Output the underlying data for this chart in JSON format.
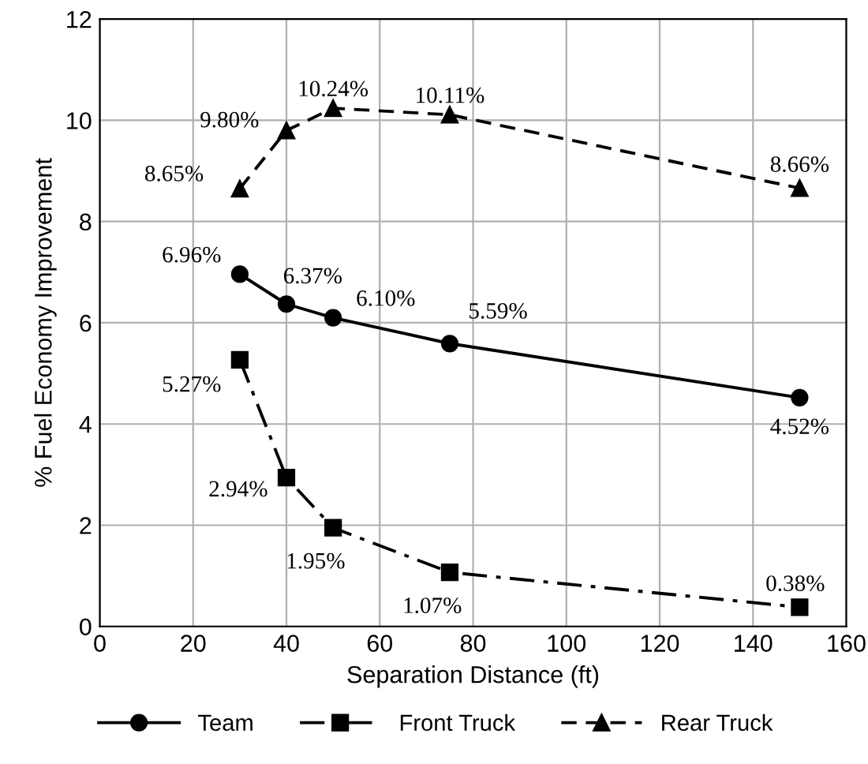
{
  "chart_data": {
    "type": "line",
    "xlabel": "Separation Distance (ft)",
    "ylabel": "% Fuel Economy Improvement",
    "xlim": [
      0,
      160
    ],
    "xticks": [
      0,
      20,
      40,
      60,
      80,
      100,
      120,
      140,
      160
    ],
    "ylim": [
      0,
      12
    ],
    "yticks": [
      0,
      2,
      4,
      6,
      8,
      10,
      12
    ],
    "grid": true,
    "legend": "bottom",
    "x": [
      30,
      40,
      50,
      75,
      150
    ],
    "series": [
      {
        "name": "Team",
        "color": "#000000",
        "marker": "circle",
        "line_style": "solid",
        "values": [
          6.96,
          6.37,
          6.1,
          5.59,
          4.52
        ],
        "value_labels": [
          "6.96%",
          "6.37%",
          "6.10%",
          "5.59%",
          "4.52%"
        ]
      },
      {
        "name": "Front Truck",
        "color": "#000000",
        "marker": "square",
        "line_style": "dashdot",
        "values": [
          5.27,
          2.94,
          1.95,
          1.07,
          0.38
        ],
        "value_labels": [
          "5.27%",
          "2.94%",
          "1.95%",
          "1.07%",
          "0.38%"
        ]
      },
      {
        "name": "Rear Truck",
        "color": "#000000",
        "marker": "triangle",
        "line_style": "dashed",
        "values": [
          8.65,
          9.8,
          10.24,
          10.11,
          8.66
        ],
        "value_labels": [
          "8.65%",
          "9.80%",
          "10.24%",
          "10.11%",
          "8.66%"
        ]
      }
    ]
  }
}
